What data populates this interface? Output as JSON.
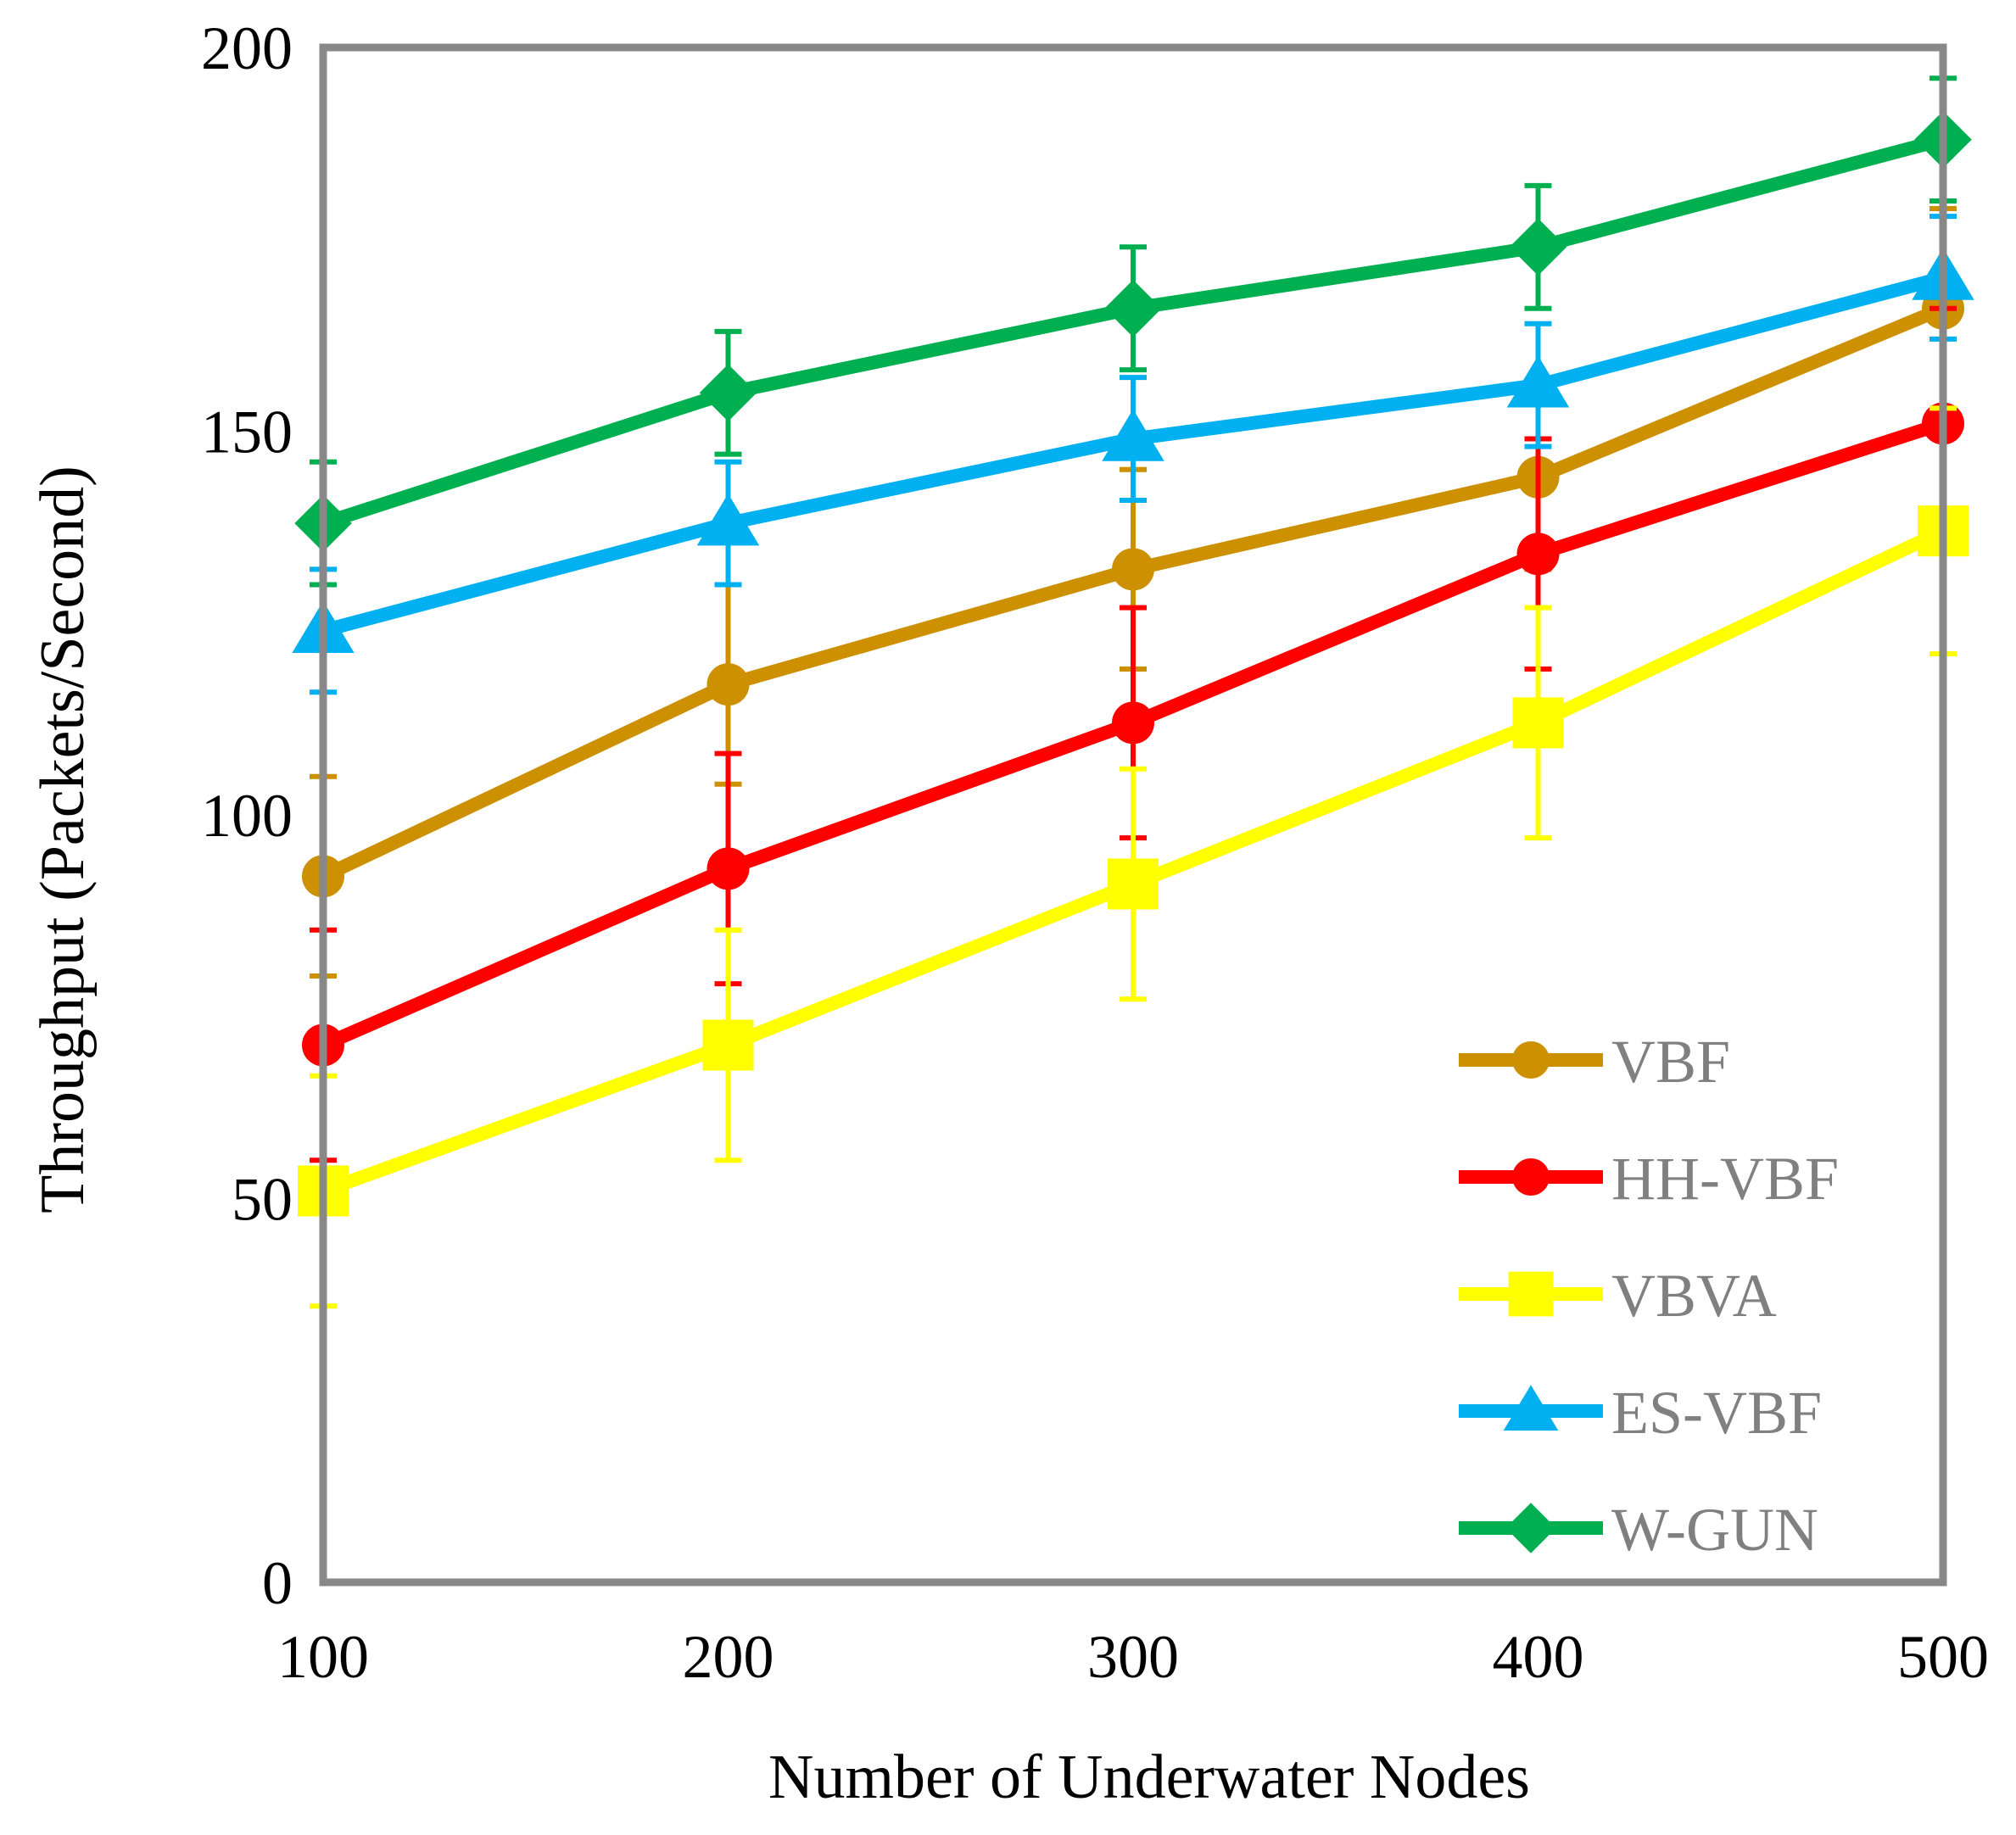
{
  "chart_data": {
    "type": "line",
    "title": "",
    "xlabel": "Number of Underwater Nodes",
    "ylabel": "Throughput (Packets/Second)",
    "x": [
      100,
      200,
      300,
      400,
      500
    ],
    "x_tick_labels": [
      "100",
      "200",
      "300",
      "400",
      "500"
    ],
    "xlim": [
      100,
      500
    ],
    "ylim": [
      0,
      200
    ],
    "y_ticks": [
      0,
      50,
      100,
      150,
      200
    ],
    "y_tick_labels": [
      "0",
      "50",
      "100",
      "150",
      "200"
    ],
    "grid": false,
    "legend_position": "bottom-right",
    "series": [
      {
        "name": "VBF",
        "color": "#CC9000",
        "marker": "circle",
        "values": [
          92,
          117,
          132,
          144,
          166
        ],
        "errors": [
          13,
          13,
          13,
          12,
          13
        ]
      },
      {
        "name": "HH-VBF",
        "color": "#FF0000",
        "marker": "circle",
        "values": [
          70,
          93,
          112,
          134,
          151
        ],
        "errors": [
          15,
          15,
          15,
          15,
          15
        ]
      },
      {
        "name": "VBVA",
        "color": "#FFFF00",
        "marker": "square",
        "values": [
          51,
          70,
          91,
          112,
          137
        ],
        "errors": [
          15,
          15,
          15,
          15,
          16
        ]
      },
      {
        "name": "ES-VBF",
        "color": "#00B0F0",
        "marker": "triangle",
        "values": [
          124,
          138,
          149,
          156,
          170
        ],
        "errors": [
          8,
          8,
          8,
          8,
          8
        ]
      },
      {
        "name": "W-GUN",
        "color": "#00B050",
        "marker": "diamond",
        "values": [
          138,
          155,
          166,
          174,
          188
        ],
        "errors": [
          8,
          8,
          8,
          8,
          8
        ]
      }
    ]
  }
}
